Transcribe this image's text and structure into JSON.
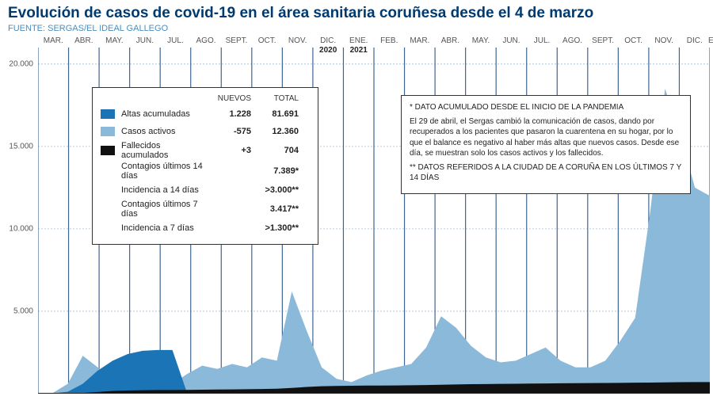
{
  "title": "Evolución de casos de covid-19 en el área sanitaria coruñesa desde el 4 de marzo",
  "source": "FUENTE: SERGAS/EL IDEAL GALLEGO",
  "chart": {
    "type": "area",
    "background_color": "#ffffff",
    "grid_color_h": "#a8bed1",
    "grid_color_v": "#3e6694",
    "series": [
      {
        "key": "altas",
        "name": "Altas acumuladas",
        "color": "#1b74b6"
      },
      {
        "key": "activos",
        "name": "Casos activos",
        "color": "#8bb9d9"
      },
      {
        "key": "fallec",
        "name": "Fallecidos acumulados",
        "color": "#111111"
      }
    ],
    "x_months": [
      "MAR.",
      "ABR.",
      "MAY.",
      "JUN.",
      "JUL.",
      "AGO.",
      "SEPT.",
      "OCT.",
      "NOV.",
      "DIC.",
      "ENE.",
      "FEB.",
      "MAR.",
      "ABR.",
      "MAY.",
      "JUN.",
      "JUL.",
      "AGO.",
      "SEPT.",
      "OCT.",
      "NOV.",
      "DIC.",
      "ENE."
    ],
    "x_year_marks": {
      "2020": 9,
      "2021": 10,
      "2022": 22
    },
    "y": {
      "min": 0,
      "max": 21000,
      "ticks": [
        5000,
        10000,
        15000,
        20000
      ],
      "tick_labels": [
        "5.000",
        "10.000",
        "15.000",
        "20.000"
      ]
    },
    "data": {
      "activos": [
        0,
        50,
        600,
        2300,
        1600,
        800,
        400,
        300,
        280,
        600,
        1200,
        1700,
        1500,
        1800,
        1600,
        2200,
        2000,
        6200,
        3800,
        1600,
        900,
        700,
        1100,
        1400,
        1600,
        1800,
        2800,
        4700,
        4000,
        2900,
        2200,
        1900,
        2000,
        2400,
        2800,
        2000,
        1600,
        1600,
        2000,
        3200,
        4600,
        11000,
        18500,
        15800,
        12500,
        12000
      ],
      "fallec": [
        0,
        0,
        10,
        40,
        100,
        160,
        190,
        210,
        220,
        225,
        230,
        240,
        250,
        260,
        270,
        280,
        300,
        350,
        410,
        450,
        470,
        480,
        490,
        495,
        500,
        510,
        520,
        540,
        560,
        575,
        585,
        595,
        600,
        610,
        620,
        628,
        635,
        640,
        648,
        656,
        665,
        675,
        685,
        694,
        700,
        704
      ],
      "altas": [
        0,
        10,
        120,
        600,
        1400,
        2000,
        2400,
        2600,
        2650,
        2650,
        0,
        0,
        0,
        0,
        0,
        0,
        0,
        0,
        0,
        0,
        0,
        0,
        0,
        0,
        0,
        0,
        0,
        0,
        0,
        0,
        0,
        0,
        0,
        0,
        0,
        0,
        0,
        0,
        0,
        0,
        0,
        0,
        0,
        0,
        0,
        0
      ]
    }
  },
  "legend": {
    "header_nuevos": "NUEVOS",
    "header_total": "TOTAL",
    "rows": [
      {
        "swatch": "#1b74b6",
        "label": "Altas acumuladas",
        "nuevos": "1.228",
        "total": "81.691"
      },
      {
        "swatch": "#8bb9d9",
        "label": "Casos activos",
        "nuevos": "-575",
        "total": "12.360"
      },
      {
        "swatch": "#111111",
        "label": "Fallecidos acumulados",
        "nuevos": "+3",
        "total": "704"
      },
      {
        "swatch": null,
        "label": "Contagios últimos 14 días",
        "nuevos": "",
        "total": "7.389*"
      },
      {
        "swatch": null,
        "label": "Incidencia a 14 días",
        "nuevos": "",
        "total": ">3.000**"
      },
      {
        "swatch": null,
        "label": "Contagios últimos 7 días",
        "nuevos": "",
        "total": "3.417**"
      },
      {
        "swatch": null,
        "label": "Incidencia a 7 días",
        "nuevos": "",
        "total": ">1.300**"
      }
    ]
  },
  "note": {
    "line1": "* DATO ACUMULADO DESDE EL INICIO DE LA PANDEMIA",
    "body": "El 29 de abril, el Sergas cambió la comunicación de casos, dando por recuperados a los pacientes que pasaron la cuarentena en su hogar, por lo que el balance es negativo al haber más altas que nuevos casos. Desde ese día, se muestran solo los casos activos y los fallecidos.",
    "line2": "** DATOS REFERIDOS A LA CIUDAD DE A CORUÑA EN LOS ÚLTIMOS 7 Y 14 DÍAS"
  }
}
